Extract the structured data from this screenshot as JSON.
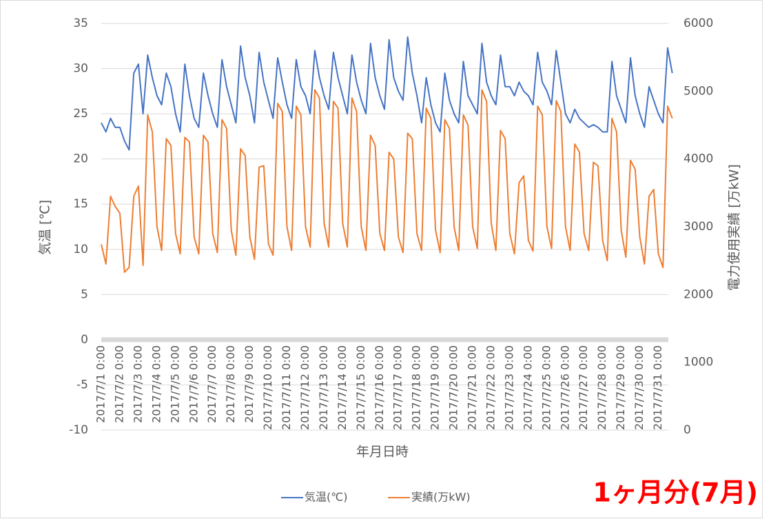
{
  "chart_data": {
    "type": "line",
    "x_label": "年月日時",
    "y_label": "気温 [℃]",
    "y2_label": "電力使用実績 [万kW]",
    "annotation": "1ヶ月分(7月)",
    "x": [
      "2017/7/1 0:00",
      "2017/7/1 6:00",
      "2017/7/1 12:00",
      "2017/7/1 18:00",
      "2017/7/2 0:00",
      "2017/7/2 6:00",
      "2017/7/2 12:00",
      "2017/7/2 18:00",
      "2017/7/3 0:00",
      "2017/7/3 6:00",
      "2017/7/3 12:00",
      "2017/7/3 18:00",
      "2017/7/4 0:00",
      "2017/7/4 6:00",
      "2017/7/4 12:00",
      "2017/7/4 18:00",
      "2017/7/5 0:00",
      "2017/7/5 6:00",
      "2017/7/5 12:00",
      "2017/7/5 18:00",
      "2017/7/6 0:00",
      "2017/7/6 6:00",
      "2017/7/6 12:00",
      "2017/7/6 18:00",
      "2017/7/7 0:00",
      "2017/7/7 6:00",
      "2017/7/7 12:00",
      "2017/7/7 18:00",
      "2017/7/8 0:00",
      "2017/7/8 6:00",
      "2017/7/8 12:00",
      "2017/7/8 18:00",
      "2017/7/9 0:00",
      "2017/7/9 6:00",
      "2017/7/9 12:00",
      "2017/7/9 18:00",
      "2017/7/10 0:00",
      "2017/7/10 6:00",
      "2017/7/10 12:00",
      "2017/7/10 18:00",
      "2017/7/11 0:00",
      "2017/7/11 6:00",
      "2017/7/11 12:00",
      "2017/7/11 18:00",
      "2017/7/12 0:00",
      "2017/7/12 6:00",
      "2017/7/12 12:00",
      "2017/7/12 18:00",
      "2017/7/13 0:00",
      "2017/7/13 6:00",
      "2017/7/13 12:00",
      "2017/7/13 18:00",
      "2017/7/14 0:00",
      "2017/7/14 6:00",
      "2017/7/14 12:00",
      "2017/7/14 18:00",
      "2017/7/15 0:00",
      "2017/7/15 6:00",
      "2017/7/15 12:00",
      "2017/7/15 18:00",
      "2017/7/16 0:00",
      "2017/7/16 6:00",
      "2017/7/16 12:00",
      "2017/7/16 18:00",
      "2017/7/17 0:00",
      "2017/7/17 6:00",
      "2017/7/17 12:00",
      "2017/7/17 18:00",
      "2017/7/18 0:00",
      "2017/7/18 6:00",
      "2017/7/18 12:00",
      "2017/7/18 18:00",
      "2017/7/19 0:00",
      "2017/7/19 6:00",
      "2017/7/19 12:00",
      "2017/7/19 18:00",
      "2017/7/20 0:00",
      "2017/7/20 6:00",
      "2017/7/20 12:00",
      "2017/7/20 18:00",
      "2017/7/21 0:00",
      "2017/7/21 6:00",
      "2017/7/21 12:00",
      "2017/7/21 18:00",
      "2017/7/22 0:00",
      "2017/7/22 6:00",
      "2017/7/22 12:00",
      "2017/7/22 18:00",
      "2017/7/23 0:00",
      "2017/7/23 6:00",
      "2017/7/23 12:00",
      "2017/7/23 18:00",
      "2017/7/24 0:00",
      "2017/7/24 6:00",
      "2017/7/24 12:00",
      "2017/7/24 18:00",
      "2017/7/25 0:00",
      "2017/7/25 6:00",
      "2017/7/25 12:00",
      "2017/7/25 18:00",
      "2017/7/26 0:00",
      "2017/7/26 6:00",
      "2017/7/26 12:00",
      "2017/7/26 18:00",
      "2017/7/27 0:00",
      "2017/7/27 6:00",
      "2017/7/27 12:00",
      "2017/7/27 18:00",
      "2017/7/28 0:00",
      "2017/7/28 6:00",
      "2017/7/28 12:00",
      "2017/7/28 18:00",
      "2017/7/29 0:00",
      "2017/7/29 6:00",
      "2017/7/29 12:00",
      "2017/7/29 18:00",
      "2017/7/30 0:00",
      "2017/7/30 6:00",
      "2017/7/30 12:00",
      "2017/7/30 18:00",
      "2017/7/31 0:00",
      "2017/7/31 6:00",
      "2017/7/31 12:00",
      "2017/7/31 18:00"
    ],
    "xticks": [
      "2017/7/1 0:00",
      "2017/7/2 0:00",
      "2017/7/3 0:00",
      "2017/7/4 0:00",
      "2017/7/5 0:00",
      "2017/7/6 0:00",
      "2017/7/7 0:00",
      "2017/7/8 0:00",
      "2017/7/9 0:00",
      "2017/7/10 0:00",
      "2017/7/11 0:00",
      "2017/7/12 0:00",
      "2017/7/13 0:00",
      "2017/7/14 0:00",
      "2017/7/15 0:00",
      "2017/7/16 0:00",
      "2017/7/17 0:00",
      "2017/7/18 0:00",
      "2017/7/19 0:00",
      "2017/7/20 0:00",
      "2017/7/21 0:00",
      "2017/7/22 0:00",
      "2017/7/23 0:00",
      "2017/7/24 0:00",
      "2017/7/25 0:00",
      "2017/7/26 0:00",
      "2017/7/27 0:00",
      "2017/7/28 0:00",
      "2017/7/29 0:00",
      "2017/7/30 0:00",
      "2017/7/31 0:00"
    ],
    "ylim": [
      -10,
      35
    ],
    "yticks": [
      -10,
      -5,
      0,
      5,
      10,
      15,
      20,
      25,
      30,
      35
    ],
    "y2lim": [
      0,
      6000
    ],
    "y2ticks": [
      0,
      1000,
      2000,
      3000,
      4000,
      5000,
      6000
    ],
    "grid": true,
    "series": [
      {
        "name": "気温(℃)",
        "color": "#4472c4",
        "values": [
          24,
          23,
          24.5,
          23.5,
          23.5,
          22,
          21,
          29.5,
          30.5,
          25,
          31.5,
          29,
          27,
          26,
          29.5,
          28,
          25,
          23,
          30.5,
          27,
          24.5,
          23.5,
          29.5,
          27,
          25,
          23.5,
          31,
          28,
          26,
          24,
          32.5,
          29,
          27,
          24,
          31.8,
          28.5,
          26.5,
          24.5,
          31.2,
          28.5,
          26,
          24.5,
          31,
          28,
          27,
          25,
          32,
          29,
          27,
          25.5,
          31.8,
          29,
          27,
          25,
          31.5,
          28.5,
          26.5,
          25,
          32.8,
          29,
          27,
          25.5,
          33.2,
          29,
          27.5,
          26.5,
          33.5,
          29.5,
          27,
          24,
          29,
          26,
          24,
          23,
          29.5,
          26.5,
          25,
          24,
          30.8,
          27,
          26,
          25,
          32.8,
          28.5,
          27,
          26,
          31.5,
          28,
          28,
          27,
          28.5,
          27.5,
          27,
          26,
          31.8,
          28.5,
          27.5,
          26,
          32,
          28.5,
          25,
          24,
          25.5,
          24.5,
          24,
          23.5,
          23.8,
          23.5,
          23,
          23,
          30.8,
          27,
          25.5,
          24,
          31.2,
          27,
          25,
          23.5,
          28,
          26.5,
          25,
          24,
          32.3,
          29.5
        ]
      },
      {
        "name": "実績(万kW)",
        "color": "#ed7d31",
        "axis": "y2",
        "values": [
          2740,
          2450,
          3450,
          3300,
          3200,
          2330,
          2400,
          3450,
          3600,
          2430,
          4650,
          4400,
          3000,
          2650,
          4300,
          4200,
          2900,
          2600,
          4320,
          4250,
          2850,
          2600,
          4350,
          4250,
          2900,
          2620,
          4580,
          4450,
          2950,
          2580,
          4150,
          4050,
          2850,
          2520,
          3880,
          3900,
          2750,
          2580,
          4820,
          4700,
          3000,
          2650,
          4780,
          4650,
          3000,
          2700,
          5020,
          4900,
          3050,
          2700,
          4850,
          4750,
          3050,
          2700,
          4900,
          4700,
          3000,
          2650,
          4350,
          4200,
          2900,
          2650,
          4100,
          4000,
          2850,
          2620,
          4380,
          4300,
          2900,
          2650,
          4750,
          4600,
          2950,
          2620,
          4580,
          4450,
          3000,
          2650,
          4650,
          4500,
          3000,
          2680,
          5020,
          4850,
          3050,
          2650,
          4420,
          4300,
          2900,
          2600,
          3650,
          3750,
          2800,
          2640,
          4780,
          4650,
          3000,
          2680,
          4860,
          4700,
          3000,
          2650,
          4220,
          4100,
          2900,
          2650,
          3950,
          3900,
          2800,
          2500,
          4600,
          4400,
          2950,
          2550,
          3980,
          3850,
          2850,
          2450,
          3450,
          3550,
          2600,
          2400,
          4780,
          4600
        ]
      }
    ]
  }
}
